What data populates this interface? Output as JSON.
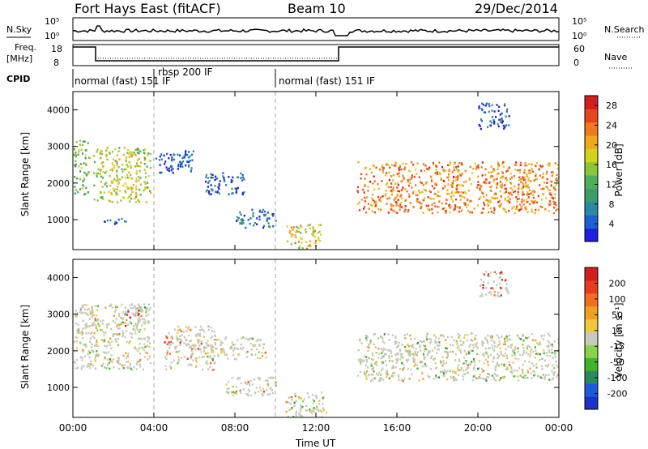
{
  "header": {
    "station": "Fort Hays East (fitACF)",
    "beam": "Beam 10",
    "date": "29/Dec/2014"
  },
  "status_panels": {
    "nsky_label": "N.Sky",
    "nsearch_label": "N.Search",
    "freq_label": "Freq.",
    "freq_unit": "[MHz]",
    "nave_label": "Nave",
    "cpid_label": "CPID",
    "noise_ticks_left": [
      "10^5",
      "10^0"
    ],
    "noise_ticks_right": [
      "10^5",
      "10^0"
    ],
    "freq_ticks": [
      "18",
      "8"
    ],
    "nave_ticks": [
      "60",
      "0"
    ],
    "cpid_segments": [
      {
        "label": "normal (fast) 151 IF",
        "start_h": 0
      },
      {
        "label": "rbsp 200 IF",
        "start_h": 4
      },
      {
        "label": "normal (fast) 151 IF",
        "start_h": 10
      }
    ]
  },
  "chart_data": [
    {
      "type": "heatmap",
      "name": "power",
      "ylabel": "Slant Range [km]",
      "yticks": [
        "1000",
        "2000",
        "3000",
        "4000"
      ],
      "ylim": [
        180,
        4500
      ],
      "xlim": [
        0,
        24
      ],
      "colorbar_label": "Power [dB]",
      "colorbar_ticks": [
        "4",
        "8",
        "12",
        "16",
        "20",
        "24",
        "28"
      ],
      "colorbar_colors": [
        "#1e1ee6",
        "#1e60d0",
        "#2a8aa6",
        "#3f9a6e",
        "#4fae58",
        "#8cc43a",
        "#d4d21e",
        "#f0a81e",
        "#f0781e",
        "#e6461e",
        "#d21e1e"
      ],
      "dashed_times_h": [
        4,
        10
      ],
      "regions": [
        {
          "t0": 0.0,
          "t1": 0.8,
          "r0": 1700,
          "r1": 3200,
          "level": 0.45
        },
        {
          "t0": 1.0,
          "t1": 3.8,
          "r0": 1500,
          "r1": 3000,
          "level": 0.55
        },
        {
          "t0": 1.5,
          "t1": 2.8,
          "r0": 900,
          "r1": 1050,
          "level": 0.1
        },
        {
          "t0": 4.0,
          "t1": 6.0,
          "r0": 2300,
          "r1": 2900,
          "level": 0.1
        },
        {
          "t0": 6.5,
          "t1": 8.5,
          "r0": 1700,
          "r1": 2300,
          "level": 0.15
        },
        {
          "t0": 8.0,
          "t1": 10.0,
          "r0": 800,
          "r1": 1300,
          "level": 0.2
        },
        {
          "t0": 10.5,
          "t1": 12.2,
          "r0": 200,
          "r1": 900,
          "level": 0.6
        },
        {
          "t0": 14.0,
          "t1": 24.0,
          "r0": 1200,
          "r1": 2600,
          "level": 0.75
        },
        {
          "t0": 20.0,
          "t1": 21.5,
          "r0": 3500,
          "r1": 4200,
          "level": 0.15
        }
      ]
    },
    {
      "type": "heatmap",
      "name": "velocity",
      "ylabel": "Slant Range [km]",
      "yticks": [
        "1000",
        "2000",
        "3000",
        "4000"
      ],
      "ylim": [
        180,
        4500
      ],
      "xlabel": "Time UT",
      "xticks": [
        "00:00",
        "04:00",
        "08:00",
        "12:00",
        "16:00",
        "20:00",
        "00:00"
      ],
      "xlim": [
        0,
        24
      ],
      "colorbar_label": "Velocity [m s^-1]",
      "colorbar_ticks": [
        "200",
        "100",
        "50",
        "15",
        "-15",
        "-50",
        "-100",
        "-200"
      ],
      "colorbar_colors": [
        "#1e32c8",
        "#1e5adc",
        "#2a8a5a",
        "#3fb42a",
        "#8ad24a",
        "#c8c8c0",
        "#f0c83c",
        "#f0a01e",
        "#f06e1e",
        "#e63c1e",
        "#d21e1e"
      ],
      "dashed_times_h": [
        4,
        10
      ],
      "regions": [
        {
          "t0": 0.0,
          "t1": 3.8,
          "r0": 1500,
          "r1": 3300,
          "level": 0.5
        },
        {
          "t0": 2.5,
          "t1": 3.6,
          "r0": 2700,
          "r1": 3200,
          "level": 0.9
        },
        {
          "t0": 4.5,
          "t1": 7.0,
          "r0": 1500,
          "r1": 2700,
          "level": 0.7
        },
        {
          "t0": 6.5,
          "t1": 9.5,
          "r0": 1800,
          "r1": 2400,
          "level": 0.5
        },
        {
          "t0": 7.5,
          "t1": 10.0,
          "r0": 800,
          "r1": 1300,
          "level": 0.7
        },
        {
          "t0": 10.5,
          "t1": 12.5,
          "r0": 200,
          "r1": 900,
          "level": 0.5
        },
        {
          "t0": 14.0,
          "t1": 24.0,
          "r0": 1200,
          "r1": 2500,
          "level": 0.5
        },
        {
          "t0": 20.0,
          "t1": 21.5,
          "r0": 3500,
          "r1": 4200,
          "level": 0.95
        }
      ]
    }
  ]
}
